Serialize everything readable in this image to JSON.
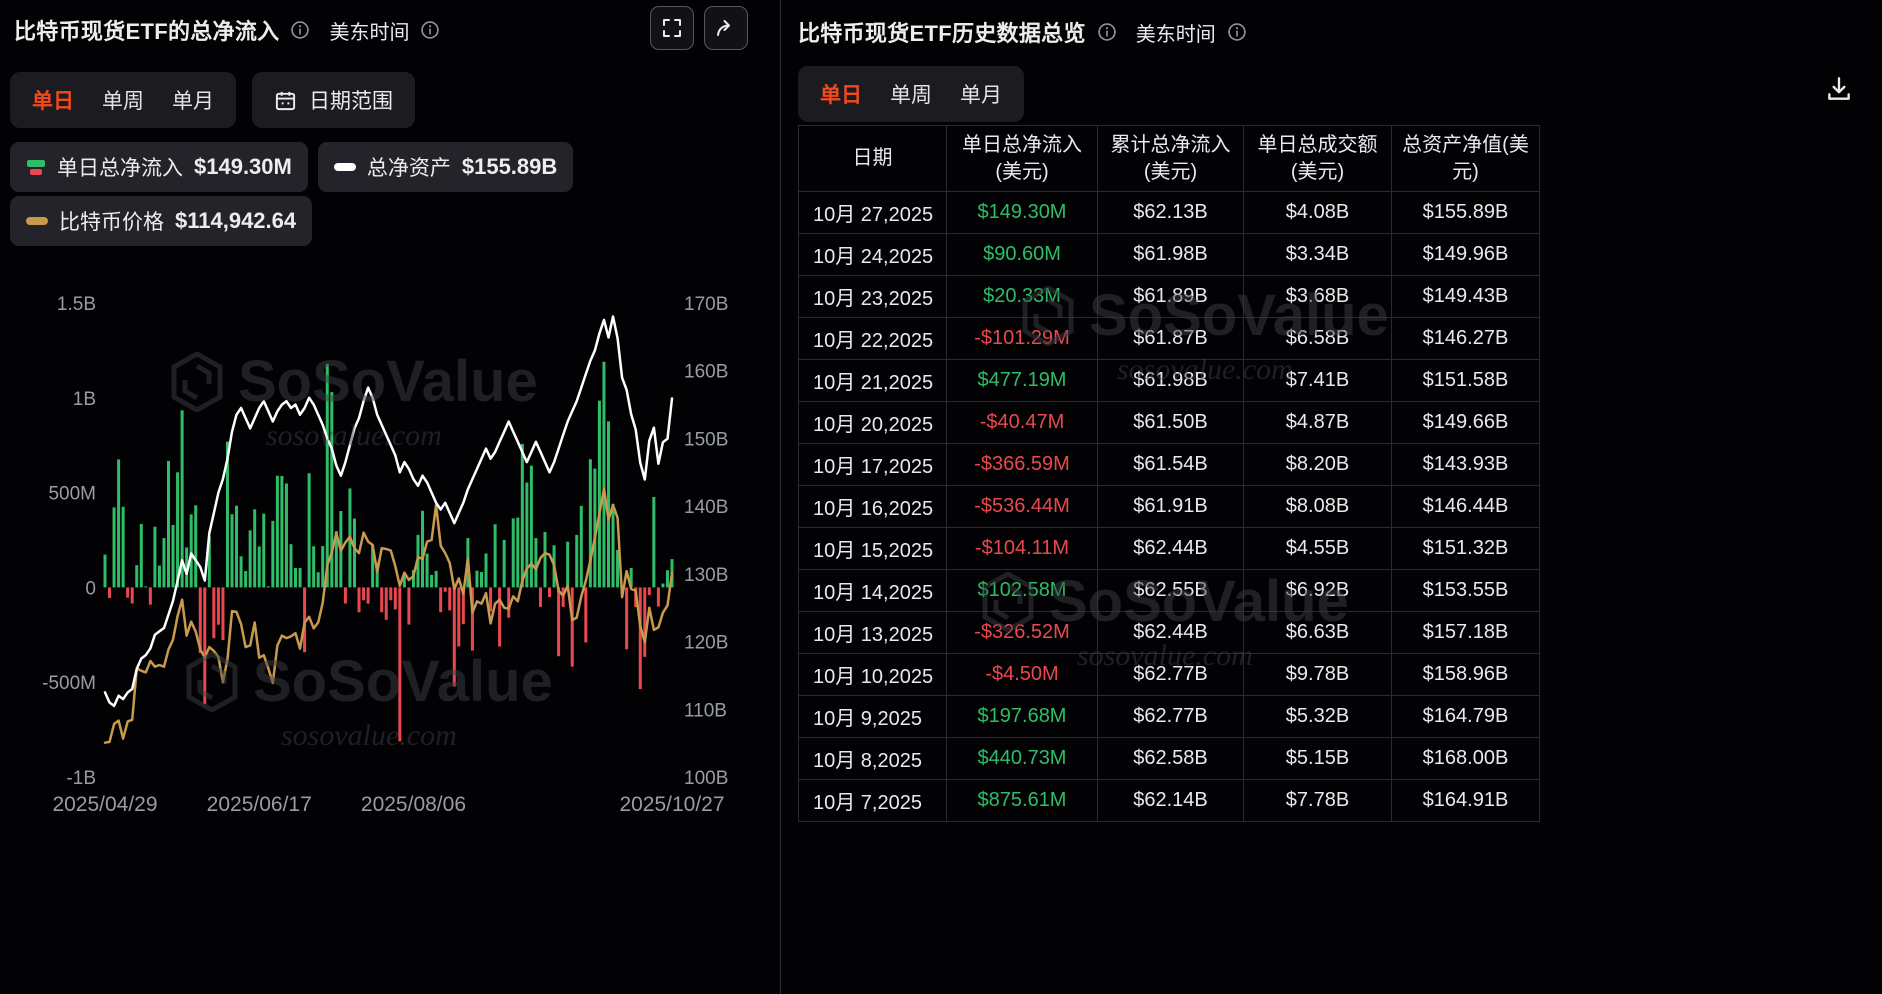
{
  "colors": {
    "accent": "#f4491c",
    "green": "#2fbd68",
    "red": "#e9494e",
    "gold": "#c89a4e",
    "assets_line": "#ffffff"
  },
  "watermark": {
    "brand": "SoSoValue",
    "domain": "sosovalue.com"
  },
  "left_panel": {
    "title": "比特币现货ETF的总净流入",
    "timezone_label": "美东时间",
    "tabs": {
      "daily": "单日",
      "weekly": "单周",
      "monthly": "单月",
      "date_range": "日期范围"
    },
    "legend": [
      {
        "label": "单日总净流入",
        "value": "$149.30M"
      },
      {
        "label": "总净资产",
        "value": "$155.89B"
      },
      {
        "label": "比特币价格",
        "value": "$114,942.64"
      }
    ]
  },
  "right_panel": {
    "title": "比特币现货ETF历史数据总览",
    "timezone_label": "美东时间",
    "tabs": {
      "daily": "单日",
      "weekly": "单周",
      "monthly": "单月"
    },
    "table": {
      "columns": [
        "日期",
        "单日总净流入(美元)",
        "累计总净流入(美元)",
        "单日总成交额(美元)",
        "总资产净值(美元)"
      ],
      "rows": [
        {
          "date": "10月 27,2025",
          "daily_flow": "$149.30M",
          "cum_flow": "$62.13B",
          "volume": "$4.08B",
          "nav": "$155.89B"
        },
        {
          "date": "10月 24,2025",
          "daily_flow": "$90.60M",
          "cum_flow": "$61.98B",
          "volume": "$3.34B",
          "nav": "$149.96B"
        },
        {
          "date": "10月 23,2025",
          "daily_flow": "$20.33M",
          "cum_flow": "$61.89B",
          "volume": "$3.68B",
          "nav": "$149.43B"
        },
        {
          "date": "10月 22,2025",
          "daily_flow": "-$101.29M",
          "cum_flow": "$61.87B",
          "volume": "$6.58B",
          "nav": "$146.27B"
        },
        {
          "date": "10月 21,2025",
          "daily_flow": "$477.19M",
          "cum_flow": "$61.98B",
          "volume": "$7.41B",
          "nav": "$151.58B"
        },
        {
          "date": "10月 20,2025",
          "daily_flow": "-$40.47M",
          "cum_flow": "$61.50B",
          "volume": "$4.87B",
          "nav": "$149.66B"
        },
        {
          "date": "10月 17,2025",
          "daily_flow": "-$366.59M",
          "cum_flow": "$61.54B",
          "volume": "$8.20B",
          "nav": "$143.93B"
        },
        {
          "date": "10月 16,2025",
          "daily_flow": "-$536.44M",
          "cum_flow": "$61.91B",
          "volume": "$8.08B",
          "nav": "$146.44B"
        },
        {
          "date": "10月 15,2025",
          "daily_flow": "-$104.11M",
          "cum_flow": "$62.44B",
          "volume": "$4.55B",
          "nav": "$151.32B"
        },
        {
          "date": "10月 14,2025",
          "daily_flow": "$102.58M",
          "cum_flow": "$62.55B",
          "volume": "$6.92B",
          "nav": "$153.55B"
        },
        {
          "date": "10月 13,2025",
          "daily_flow": "-$326.52M",
          "cum_flow": "$62.44B",
          "volume": "$6.63B",
          "nav": "$157.18B"
        },
        {
          "date": "10月 10,2025",
          "daily_flow": "-$4.50M",
          "cum_flow": "$62.77B",
          "volume": "$9.78B",
          "nav": "$158.96B"
        },
        {
          "date": "10月 9,2025",
          "daily_flow": "$197.68M",
          "cum_flow": "$62.77B",
          "volume": "$5.32B",
          "nav": "$164.79B"
        },
        {
          "date": "10月 8,2025",
          "daily_flow": "$440.73M",
          "cum_flow": "$62.58B",
          "volume": "$5.15B",
          "nav": "$168.00B"
        },
        {
          "date": "10月 7,2025",
          "daily_flow": "$875.61M",
          "cum_flow": "$62.14B",
          "volume": "$7.78B",
          "nav": "$164.91B"
        }
      ]
    }
  },
  "chart_data": {
    "type": "bar",
    "title": "比特币现货ETF的总净流入",
    "x_dates": [
      "2025-04-29",
      "2025-04-30",
      "2025-05-01",
      "2025-05-02",
      "2025-05-05",
      "2025-05-06",
      "2025-05-07",
      "2025-05-08",
      "2025-05-09",
      "2025-05-12",
      "2025-05-13",
      "2025-05-14",
      "2025-05-15",
      "2025-05-16",
      "2025-05-19",
      "2025-05-20",
      "2025-05-21",
      "2025-05-22",
      "2025-05-23",
      "2025-05-27",
      "2025-05-28",
      "2025-05-29",
      "2025-05-30",
      "2025-06-02",
      "2025-06-03",
      "2025-06-04",
      "2025-06-05",
      "2025-06-06",
      "2025-06-09",
      "2025-06-10",
      "2025-06-11",
      "2025-06-12",
      "2025-06-13",
      "2025-06-16",
      "2025-06-17",
      "2025-06-18",
      "2025-06-20",
      "2025-06-23",
      "2025-06-24",
      "2025-06-25",
      "2025-06-26",
      "2025-06-27",
      "2025-06-30",
      "2025-07-01",
      "2025-07-02",
      "2025-07-03",
      "2025-07-07",
      "2025-07-08",
      "2025-07-09",
      "2025-07-10",
      "2025-07-11",
      "2025-07-14",
      "2025-07-15",
      "2025-07-16",
      "2025-07-17",
      "2025-07-18",
      "2025-07-21",
      "2025-07-22",
      "2025-07-23",
      "2025-07-24",
      "2025-07-25",
      "2025-07-28",
      "2025-07-29",
      "2025-07-30",
      "2025-07-31",
      "2025-08-01",
      "2025-08-04",
      "2025-08-05",
      "2025-08-06",
      "2025-08-07",
      "2025-08-08",
      "2025-08-11",
      "2025-08-12",
      "2025-08-13",
      "2025-08-14",
      "2025-08-15",
      "2025-08-18",
      "2025-08-19",
      "2025-08-20",
      "2025-08-21",
      "2025-08-22",
      "2025-08-25",
      "2025-08-26",
      "2025-08-27",
      "2025-08-28",
      "2025-08-29",
      "2025-09-02",
      "2025-09-03",
      "2025-09-04",
      "2025-09-05",
      "2025-09-08",
      "2025-09-09",
      "2025-09-10",
      "2025-09-11",
      "2025-09-12",
      "2025-09-15",
      "2025-09-16",
      "2025-09-17",
      "2025-09-18",
      "2025-09-19",
      "2025-09-22",
      "2025-09-23",
      "2025-09-24",
      "2025-09-25",
      "2025-09-26",
      "2025-09-29",
      "2025-09-30",
      "2025-10-01",
      "2025-10-02",
      "2025-10-03",
      "2025-10-06",
      "2025-10-07",
      "2025-10-08",
      "2025-10-09",
      "2025-10-10",
      "2025-10-13",
      "2025-10-14",
      "2025-10-15",
      "2025-10-16",
      "2025-10-17",
      "2025-10-20",
      "2025-10-21",
      "2025-10-22",
      "2025-10-23",
      "2025-10-24",
      "2025-10-27"
    ],
    "series": [
      {
        "key": "daily_flow",
        "name": "单日总净流入",
        "type": "bar",
        "axis": "flow",
        "values": [
          173,
          -56,
          422,
          675,
          425,
          -54,
          -85,
          117,
          334,
          5,
          -91,
          320,
          115,
          260,
          667,
          329,
          607,
          934,
          211,
          385,
          433,
          -346,
          -616,
          268,
          -268,
          -197,
          -278,
          769,
          386,
          431,
          164,
          86,
          301,
          412,
          216,
          389,
          6,
          351,
          589,
          588,
          548,
          228,
          102,
          102,
          -342,
          602,
          217,
          80,
          218,
          1180,
          1030,
          297,
          403,
          -85,
          522,
          363,
          -131,
          -68,
          -86,
          226,
          131,
          -131,
          -171,
          -68,
          -116,
          -812,
          74,
          -196,
          92,
          277,
          404,
          178,
          66,
          87,
          -131,
          -23,
          -121,
          -523,
          -312,
          -194,
          260,
          -333,
          88,
          81,
          179,
          -127,
          333,
          -312,
          250,
          -160,
          364,
          368,
          757,
          553,
          642,
          260,
          -103,
          292,
          -51,
          222,
          -363,
          -103,
          241,
          -418,
          277,
          430,
          -290,
          676,
          627,
          985,
          1190,
          875.61,
          440.73,
          197.68,
          -4.5,
          -326.52,
          102.58,
          -104.11,
          -536.44,
          -366.59,
          -40.47,
          477.19,
          -101.29,
          20.33,
          90.6,
          149.3
        ]
      },
      {
        "key": "total_net_assets",
        "name": "总净资产",
        "type": "line",
        "axis": "assets",
        "color": "#ffffff",
        "values": [
          112.5,
          111,
          110.5,
          112,
          111.5,
          112.5,
          113,
          116,
          117.5,
          118,
          119,
          121,
          121.5,
          122,
          124,
          126,
          129,
          132,
          130,
          133,
          132,
          131,
          129,
          136,
          139,
          142,
          144,
          147,
          151,
          153.5,
          154.5,
          153,
          151.5,
          153,
          154.5,
          155.5,
          154,
          152.5,
          154,
          155,
          155.5,
          154.5,
          155,
          153.5,
          154.5,
          156,
          155,
          153.5,
          152,
          150,
          148.5,
          146,
          144.5,
          146.5,
          149,
          151.5,
          153,
          155.5,
          157.5,
          156,
          153.5,
          152,
          150.5,
          149,
          147.5,
          145,
          146.5,
          145.5,
          144,
          143,
          144.5,
          143.5,
          142,
          140.5,
          139.5,
          140.5,
          139,
          137.5,
          139,
          140.5,
          142.5,
          144,
          145.5,
          147,
          148.5,
          147,
          148,
          149.5,
          151,
          152.5,
          151,
          149.5,
          148,
          146.5,
          148,
          149.5,
          148,
          146.5,
          145,
          146.5,
          148.5,
          150.5,
          152.5,
          154,
          155.5,
          157.5,
          159.5,
          161.5,
          163,
          165.5,
          167.5,
          164.91,
          168,
          164.79,
          158.96,
          157.18,
          153.55,
          151.32,
          146.44,
          143.93,
          149.66,
          151.58,
          146.27,
          149.43,
          149.96,
          155.89
        ]
      },
      {
        "key": "btc_price",
        "name": "比特币价格",
        "type": "line",
        "axis": "price",
        "color": "#c89a4e",
        "values": [
          94.2,
          94.3,
          96.5,
          96.9,
          94.7,
          96.8,
          97,
          103.3,
          103,
          102.8,
          104.2,
          103.5,
          103.7,
          103.5,
          105.6,
          106.8,
          109.7,
          111.7,
          107.3,
          109,
          107.8,
          105.6,
          104.6,
          105.9,
          105.4,
          104.7,
          101.6,
          104.4,
          110.3,
          110.2,
          108.7,
          105.9,
          106.1,
          108.9,
          104.6,
          104.9,
          103.3,
          101.5,
          106.1,
          107.3,
          107,
          107.2,
          107.6,
          105.7,
          108.9,
          109.6,
          108.2,
          108.9,
          111.3,
          115.9,
          117.5,
          119.8,
          117.7,
          118.7,
          119.4,
          118,
          117.4,
          119.9,
          118.8,
          118.4,
          115.1,
          118,
          117.9,
          117.7,
          115.8,
          113.4,
          115,
          114.1,
          114.6,
          116.9,
          116.7,
          118.8,
          119,
          123.3,
          118.3,
          117.4,
          116.2,
          113,
          114.3,
          112.4,
          116.8,
          110.1,
          111.5,
          111.2,
          112.5,
          108.8,
          111.2,
          111.7,
          110.7,
          110.6,
          112.1,
          111.5,
          114,
          115.5,
          116.1,
          115.4,
          116.8,
          117.4,
          117.2,
          115.9,
          112.8,
          112.2,
          113.4,
          109.2,
          109.5,
          112.1,
          114,
          116.5,
          119.3,
          122.2,
          125.3,
          121.5,
          123.3,
          121.7,
          112,
          115.2,
          113,
          112.8,
          108.5,
          106.5,
          110.7,
          108,
          108.3,
          110.1,
          111,
          114.94
        ]
      }
    ],
    "axes": {
      "flow": {
        "label": "单日总净流入",
        "unit": "M USD",
        "range": [
          -1000,
          1500
        ],
        "side": "left",
        "ticks": [
          {
            "value": 1500,
            "label": "1.5B"
          },
          {
            "value": 1000,
            "label": "1B"
          },
          {
            "value": 500,
            "label": "500M"
          },
          {
            "value": 0,
            "label": "0"
          },
          {
            "value": -500,
            "label": "-500M"
          },
          {
            "value": -1000,
            "label": "-1B"
          }
        ]
      },
      "assets": {
        "label": "总净资产",
        "unit": "B USD",
        "range": [
          100,
          170
        ],
        "side": "right",
        "ticks": [
          {
            "value": 170,
            "label": "170B"
          },
          {
            "value": 160,
            "label": "160B"
          },
          {
            "value": 150,
            "label": "150B"
          },
          {
            "value": 140,
            "label": "140B"
          },
          {
            "value": 130,
            "label": "130B"
          },
          {
            "value": 120,
            "label": "120B"
          },
          {
            "value": 110,
            "label": "110B"
          },
          {
            "value": 100,
            "label": "100B"
          }
        ]
      },
      "price": {
        "label": "比特币价格",
        "unit": "K USD",
        "range": [
          90,
          148
        ],
        "hidden": true
      }
    },
    "x_ticks": [
      {
        "date": "2025-04-29",
        "label": "2025/04/29"
      },
      {
        "date": "2025-06-17",
        "label": "2025/06/17"
      },
      {
        "date": "2025-08-06",
        "label": "2025/08/06"
      },
      {
        "date": "2025-10-27",
        "label": "2025/10/27"
      }
    ],
    "grid": false,
    "legend_position": "top-left"
  }
}
